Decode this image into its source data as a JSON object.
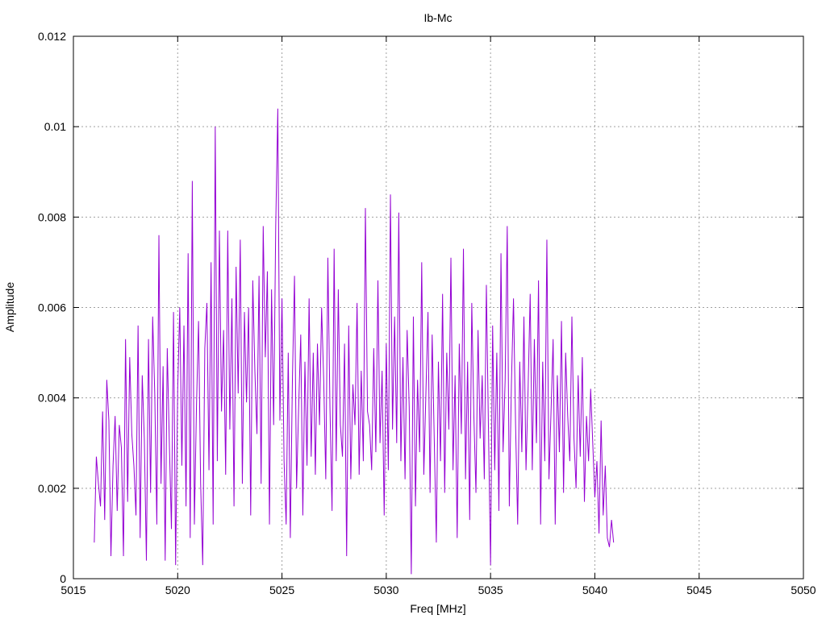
{
  "chart_data": {
    "type": "line",
    "title": "Ib-Mc",
    "xlabel": "Freq [MHz]",
    "ylabel": "Amplitude",
    "xlim": [
      5015,
      5050
    ],
    "ylim": [
      0,
      0.012
    ],
    "xticks": [
      5015,
      5020,
      5025,
      5030,
      5035,
      5040,
      5045,
      5050
    ],
    "xtick_labels": [
      "5015",
      "5020",
      "5025",
      "5030",
      "5035",
      "5040",
      "5045",
      "5050"
    ],
    "yticks": [
      0,
      0.002,
      0.004,
      0.006,
      0.008,
      0.01,
      0.012
    ],
    "ytick_labels": [
      "0",
      "0.002",
      "0.004",
      "0.006",
      "0.008",
      "0.01",
      "0.012"
    ],
    "grid": true,
    "series": [
      {
        "color": "#9400d3",
        "x_start": 5016.0,
        "x_step": 0.1,
        "values": [
          0.0008,
          0.0027,
          0.0021,
          0.0016,
          0.0037,
          0.0013,
          0.0044,
          0.0035,
          0.0005,
          0.0025,
          0.0036,
          0.0015,
          0.0034,
          0.0029,
          0.0005,
          0.0053,
          0.0017,
          0.0049,
          0.0032,
          0.0025,
          0.0014,
          0.0056,
          0.0009,
          0.0045,
          0.0031,
          0.0004,
          0.0053,
          0.0019,
          0.0058,
          0.0041,
          0.0012,
          0.0076,
          0.0021,
          0.0047,
          0.0004,
          0.0051,
          0.003,
          0.0011,
          0.0059,
          0.0003,
          0.0042,
          0.006,
          0.0025,
          0.0056,
          0.0016,
          0.0072,
          0.0009,
          0.0088,
          0.0012,
          0.0038,
          0.0057,
          0.0021,
          0.0003,
          0.0051,
          0.0061,
          0.0024,
          0.007,
          0.0012,
          0.01,
          0.0026,
          0.0077,
          0.0037,
          0.0055,
          0.0023,
          0.0077,
          0.0033,
          0.0062,
          0.0016,
          0.0069,
          0.0041,
          0.0075,
          0.0021,
          0.0059,
          0.0039,
          0.006,
          0.0014,
          0.0066,
          0.0046,
          0.0032,
          0.0067,
          0.0021,
          0.0078,
          0.0049,
          0.0068,
          0.0012,
          0.0064,
          0.0034,
          0.0078,
          0.0104,
          0.0035,
          0.0062,
          0.0026,
          0.0012,
          0.005,
          0.0009,
          0.0044,
          0.0067,
          0.002,
          0.0038,
          0.0054,
          0.0014,
          0.0048,
          0.0025,
          0.0062,
          0.0027,
          0.005,
          0.0023,
          0.0052,
          0.0034,
          0.006,
          0.0044,
          0.0022,
          0.0071,
          0.0038,
          0.0015,
          0.0073,
          0.0026,
          0.0064,
          0.0034,
          0.0027,
          0.0052,
          0.0005,
          0.0056,
          0.0022,
          0.0043,
          0.0034,
          0.0061,
          0.0023,
          0.0046,
          0.0026,
          0.0082,
          0.0037,
          0.0034,
          0.0024,
          0.0051,
          0.0028,
          0.0066,
          0.003,
          0.0046,
          0.0014,
          0.0052,
          0.0024,
          0.0085,
          0.0033,
          0.0058,
          0.003,
          0.0081,
          0.0026,
          0.0049,
          0.0022,
          0.0055,
          0.0038,
          0.0001,
          0.0058,
          0.0016,
          0.0044,
          0.0028,
          0.007,
          0.0023,
          0.0041,
          0.0059,
          0.0019,
          0.0054,
          0.0031,
          0.0008,
          0.0048,
          0.0026,
          0.0063,
          0.0019,
          0.005,
          0.0033,
          0.0071,
          0.0024,
          0.0045,
          0.0009,
          0.0052,
          0.0032,
          0.0073,
          0.0022,
          0.0048,
          0.0013,
          0.0061,
          0.0036,
          0.0019,
          0.0055,
          0.0031,
          0.0045,
          0.0022,
          0.0065,
          0.0033,
          0.0003,
          0.0056,
          0.0024,
          0.005,
          0.0015,
          0.0072,
          0.0028,
          0.0044,
          0.0078,
          0.0016,
          0.0043,
          0.0062,
          0.0034,
          0.0012,
          0.0048,
          0.0028,
          0.0058,
          0.0024,
          0.0042,
          0.0063,
          0.0024,
          0.0053,
          0.003,
          0.0066,
          0.0012,
          0.0048,
          0.0026,
          0.0075,
          0.0022,
          0.0037,
          0.0053,
          0.0012,
          0.0045,
          0.0028,
          0.0057,
          0.0019,
          0.005,
          0.0036,
          0.0026,
          0.0058,
          0.0031,
          0.002,
          0.0045,
          0.0027,
          0.0049,
          0.0017,
          0.0036,
          0.0026,
          0.0042,
          0.003,
          0.0018,
          0.0026,
          0.001,
          0.0035,
          0.0014,
          0.0025,
          0.0009,
          0.0007,
          0.0013,
          0.0008
        ]
      }
    ]
  }
}
